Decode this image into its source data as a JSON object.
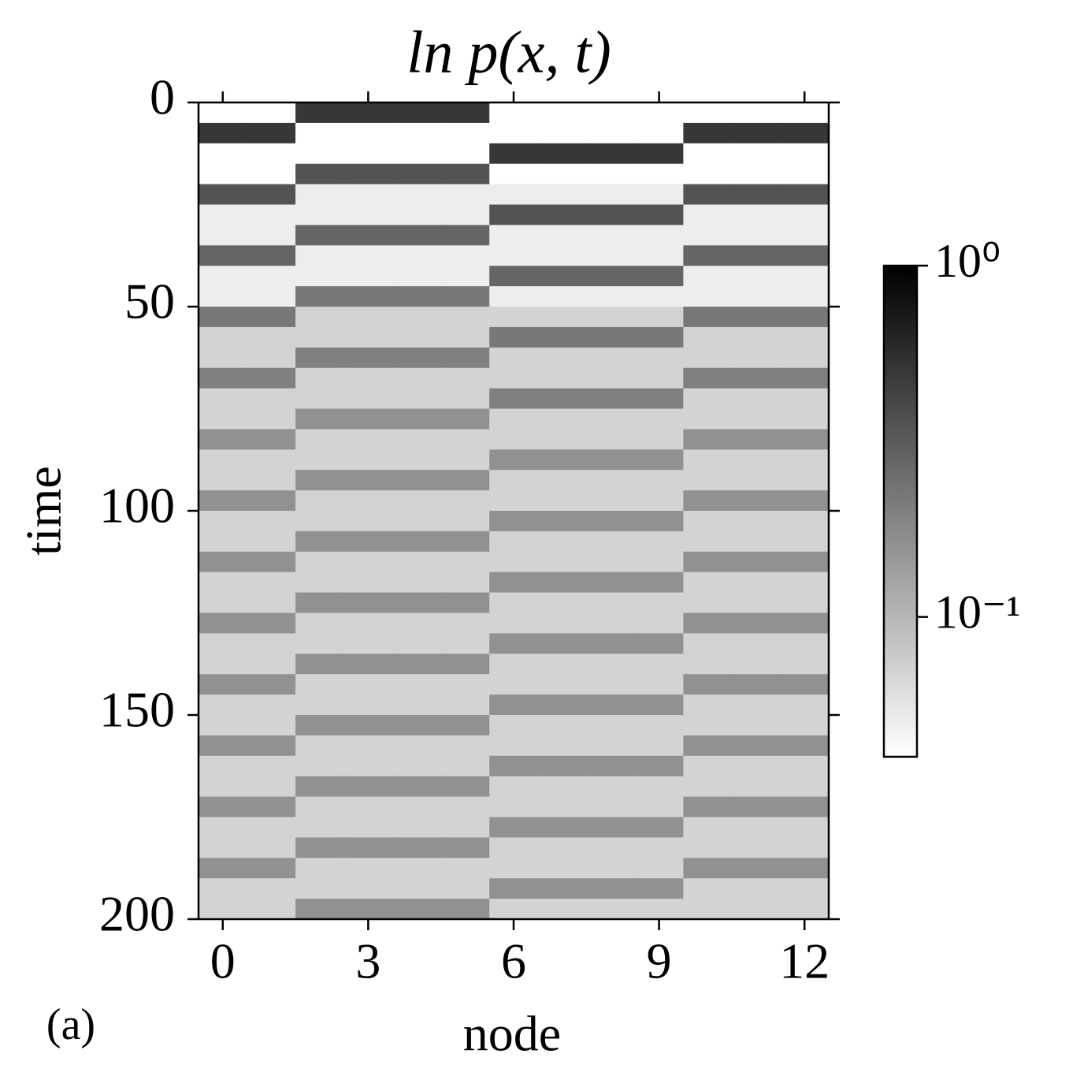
{
  "chart_data": {
    "type": "heatmap",
    "title": "ln p(x, t)",
    "xlabel": "node",
    "ylabel": "time",
    "panel_label": "(a)",
    "xlim": [
      -0.5,
      12.5
    ],
    "xticks": [
      0,
      3,
      6,
      9,
      12
    ],
    "ylim": [
      0,
      200
    ],
    "yticks": [
      0,
      50,
      100,
      150,
      200
    ],
    "y_inverted": true,
    "x": [
      0,
      1,
      2,
      3,
      4,
      5,
      6,
      7,
      8,
      9,
      10,
      11,
      12
    ],
    "ybins": [
      0,
      5,
      10,
      15,
      20,
      25,
      30,
      35,
      40,
      45,
      50,
      55,
      60,
      65,
      70,
      75,
      80,
      85,
      90,
      95,
      100,
      105,
      110,
      115,
      120,
      125,
      130,
      135,
      140,
      145,
      150,
      155,
      160,
      165,
      170,
      175,
      180,
      185,
      190,
      195,
      200
    ],
    "colormap": "gray_r",
    "color_scale": "log",
    "clim": [
      0.04,
      1
    ],
    "cticks": [
      {
        "value": 1,
        "label": "10⁰"
      },
      {
        "value": 0.1,
        "label": "10⁻¹"
      }
    ],
    "z": [
      [
        0.04,
        0.04,
        0.5,
        0.5,
        0.5,
        0.5,
        0.04,
        0.04,
        0.04,
        0.04,
        0.04,
        0.04,
        0.04
      ],
      [
        0.5,
        0.5,
        0.04,
        0.04,
        0.04,
        0.04,
        0.04,
        0.04,
        0.04,
        0.04,
        0.5,
        0.5,
        0.5
      ],
      [
        0.04,
        0.04,
        0.04,
        0.04,
        0.04,
        0.04,
        0.5,
        0.5,
        0.5,
        0.5,
        0.04,
        0.04,
        0.04
      ],
      [
        0.04,
        0.04,
        0.35,
        0.35,
        0.35,
        0.35,
        0.04,
        0.04,
        0.04,
        0.04,
        0.04,
        0.04,
        0.04
      ],
      [
        0.35,
        0.35,
        0.05,
        0.05,
        0.05,
        0.05,
        0.05,
        0.05,
        0.05,
        0.05,
        0.35,
        0.35,
        0.35
      ],
      [
        0.05,
        0.05,
        0.05,
        0.05,
        0.05,
        0.05,
        0.35,
        0.35,
        0.35,
        0.35,
        0.05,
        0.05,
        0.05
      ],
      [
        0.05,
        0.05,
        0.28,
        0.28,
        0.28,
        0.28,
        0.05,
        0.05,
        0.05,
        0.05,
        0.05,
        0.05,
        0.05
      ],
      [
        0.28,
        0.28,
        0.05,
        0.05,
        0.05,
        0.05,
        0.05,
        0.05,
        0.05,
        0.05,
        0.28,
        0.28,
        0.28
      ],
      [
        0.05,
        0.05,
        0.05,
        0.05,
        0.05,
        0.05,
        0.28,
        0.28,
        0.28,
        0.28,
        0.05,
        0.05,
        0.05
      ],
      [
        0.05,
        0.05,
        0.22,
        0.22,
        0.22,
        0.22,
        0.05,
        0.05,
        0.05,
        0.05,
        0.05,
        0.05,
        0.05
      ],
      [
        0.22,
        0.22,
        0.07,
        0.07,
        0.07,
        0.07,
        0.07,
        0.07,
        0.07,
        0.07,
        0.22,
        0.22,
        0.22
      ],
      [
        0.07,
        0.07,
        0.07,
        0.07,
        0.07,
        0.07,
        0.22,
        0.22,
        0.22,
        0.22,
        0.07,
        0.07,
        0.07
      ],
      [
        0.07,
        0.07,
        0.2,
        0.2,
        0.2,
        0.2,
        0.07,
        0.07,
        0.07,
        0.07,
        0.07,
        0.07,
        0.07
      ],
      [
        0.2,
        0.2,
        0.07,
        0.07,
        0.07,
        0.07,
        0.07,
        0.07,
        0.07,
        0.07,
        0.2,
        0.2,
        0.2
      ],
      [
        0.07,
        0.07,
        0.07,
        0.07,
        0.07,
        0.07,
        0.2,
        0.2,
        0.2,
        0.2,
        0.07,
        0.07,
        0.07
      ],
      [
        0.07,
        0.07,
        0.16,
        0.16,
        0.16,
        0.16,
        0.07,
        0.07,
        0.07,
        0.07,
        0.07,
        0.07,
        0.07
      ],
      [
        0.16,
        0.16,
        0.07,
        0.07,
        0.07,
        0.07,
        0.07,
        0.07,
        0.07,
        0.07,
        0.16,
        0.16,
        0.16
      ],
      [
        0.07,
        0.07,
        0.07,
        0.07,
        0.07,
        0.07,
        0.16,
        0.16,
        0.16,
        0.16,
        0.07,
        0.07,
        0.07
      ],
      [
        0.07,
        0.07,
        0.16,
        0.16,
        0.16,
        0.16,
        0.07,
        0.07,
        0.07,
        0.07,
        0.07,
        0.07,
        0.07
      ],
      [
        0.16,
        0.16,
        0.07,
        0.07,
        0.07,
        0.07,
        0.07,
        0.07,
        0.07,
        0.07,
        0.16,
        0.16,
        0.16
      ],
      [
        0.07,
        0.07,
        0.07,
        0.07,
        0.07,
        0.07,
        0.16,
        0.16,
        0.16,
        0.16,
        0.07,
        0.07,
        0.07
      ],
      [
        0.07,
        0.07,
        0.16,
        0.16,
        0.16,
        0.16,
        0.07,
        0.07,
        0.07,
        0.07,
        0.07,
        0.07,
        0.07
      ],
      [
        0.16,
        0.16,
        0.07,
        0.07,
        0.07,
        0.07,
        0.07,
        0.07,
        0.07,
        0.07,
        0.16,
        0.16,
        0.16
      ],
      [
        0.07,
        0.07,
        0.07,
        0.07,
        0.07,
        0.07,
        0.16,
        0.16,
        0.16,
        0.16,
        0.07,
        0.07,
        0.07
      ],
      [
        0.07,
        0.07,
        0.16,
        0.16,
        0.16,
        0.16,
        0.07,
        0.07,
        0.07,
        0.07,
        0.07,
        0.07,
        0.07
      ],
      [
        0.16,
        0.16,
        0.07,
        0.07,
        0.07,
        0.07,
        0.07,
        0.07,
        0.07,
        0.07,
        0.16,
        0.16,
        0.16
      ],
      [
        0.07,
        0.07,
        0.07,
        0.07,
        0.07,
        0.07,
        0.16,
        0.16,
        0.16,
        0.16,
        0.07,
        0.07,
        0.07
      ],
      [
        0.07,
        0.07,
        0.16,
        0.16,
        0.16,
        0.16,
        0.07,
        0.07,
        0.07,
        0.07,
        0.07,
        0.07,
        0.07
      ],
      [
        0.16,
        0.16,
        0.07,
        0.07,
        0.07,
        0.07,
        0.07,
        0.07,
        0.07,
        0.07,
        0.16,
        0.16,
        0.16
      ],
      [
        0.07,
        0.07,
        0.07,
        0.07,
        0.07,
        0.07,
        0.16,
        0.16,
        0.16,
        0.16,
        0.07,
        0.07,
        0.07
      ],
      [
        0.07,
        0.07,
        0.16,
        0.16,
        0.16,
        0.16,
        0.07,
        0.07,
        0.07,
        0.07,
        0.07,
        0.07,
        0.07
      ],
      [
        0.16,
        0.16,
        0.07,
        0.07,
        0.07,
        0.07,
        0.07,
        0.07,
        0.07,
        0.07,
        0.16,
        0.16,
        0.16
      ],
      [
        0.07,
        0.07,
        0.07,
        0.07,
        0.07,
        0.07,
        0.16,
        0.16,
        0.16,
        0.16,
        0.07,
        0.07,
        0.07
      ],
      [
        0.07,
        0.07,
        0.16,
        0.16,
        0.16,
        0.16,
        0.07,
        0.07,
        0.07,
        0.07,
        0.07,
        0.07,
        0.07
      ],
      [
        0.16,
        0.16,
        0.07,
        0.07,
        0.07,
        0.07,
        0.07,
        0.07,
        0.07,
        0.07,
        0.16,
        0.16,
        0.16
      ],
      [
        0.07,
        0.07,
        0.07,
        0.07,
        0.07,
        0.07,
        0.16,
        0.16,
        0.16,
        0.16,
        0.07,
        0.07,
        0.07
      ],
      [
        0.07,
        0.07,
        0.16,
        0.16,
        0.16,
        0.16,
        0.07,
        0.07,
        0.07,
        0.07,
        0.07,
        0.07,
        0.07
      ],
      [
        0.16,
        0.16,
        0.07,
        0.07,
        0.07,
        0.07,
        0.07,
        0.07,
        0.07,
        0.07,
        0.16,
        0.16,
        0.16
      ],
      [
        0.07,
        0.07,
        0.07,
        0.07,
        0.07,
        0.07,
        0.16,
        0.16,
        0.16,
        0.16,
        0.07,
        0.07,
        0.07
      ],
      [
        0.07,
        0.07,
        0.16,
        0.16,
        0.16,
        0.16,
        0.07,
        0.07,
        0.07,
        0.07,
        0.07,
        0.07,
        0.07
      ]
    ]
  }
}
